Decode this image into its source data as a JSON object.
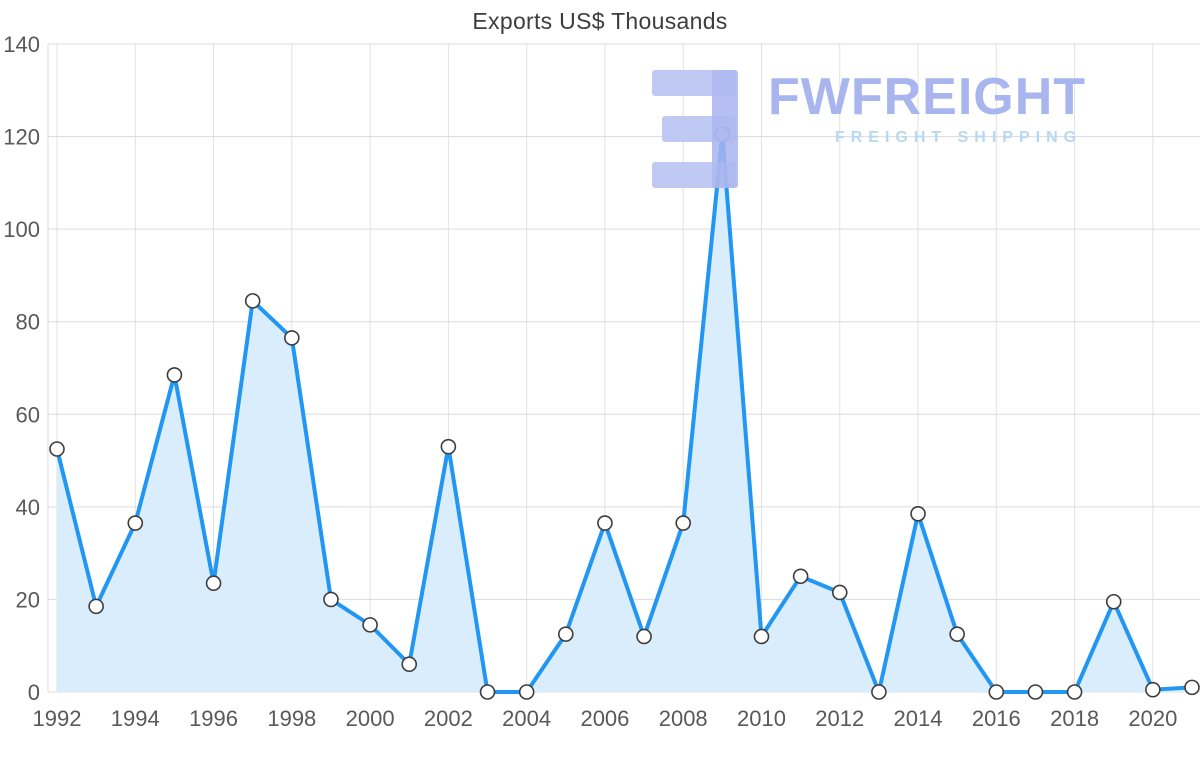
{
  "title": "Exports US$ Thousands",
  "watermark": {
    "brand": "FWFREIGHT",
    "tagline": "FREIGHT SHIPPING",
    "logo_color": "#bdc7f4",
    "logo_accent_color": "#a9b5ef",
    "brand_color": "#a5b2ee",
    "tagline_color": "#b5d5f3"
  },
  "chart_data": {
    "type": "area",
    "title": "Exports US$ Thousands",
    "xlabel": "",
    "ylabel": "",
    "x": [
      1992,
      1993,
      1994,
      1995,
      1996,
      1997,
      1998,
      1999,
      2000,
      2001,
      2002,
      2003,
      2004,
      2005,
      2006,
      2007,
      2008,
      2009,
      2010,
      2011,
      2012,
      2013,
      2014,
      2015,
      2016,
      2017,
      2018,
      2019,
      2020,
      2021
    ],
    "values": [
      52.5,
      18.5,
      36.5,
      68.5,
      23.5,
      84.5,
      76.5,
      20,
      14.5,
      6,
      53,
      0,
      0,
      12.5,
      36.5,
      12,
      36.5,
      120.5,
      12,
      25,
      21.5,
      0,
      38.5,
      12.5,
      0,
      0,
      0,
      19.5,
      0.5,
      1
    ],
    "x_tick_labels": [
      "1992",
      "1994",
      "1996",
      "1998",
      "2000",
      "2002",
      "2004",
      "2006",
      "2008",
      "2010",
      "2012",
      "2014",
      "2016",
      "2018",
      "2020"
    ],
    "y_ticks": [
      0,
      20,
      40,
      60,
      80,
      100,
      120,
      140
    ],
    "ylim": [
      0,
      140
    ],
    "grid": true,
    "legend": "none",
    "line_color": "#2196f3",
    "area_color": "#d9edfc",
    "marker_fill": "#ffffff",
    "marker_stroke": "#3d3d3d",
    "grid_color": "#dcdcdc",
    "tick_label_color": "#595959"
  }
}
